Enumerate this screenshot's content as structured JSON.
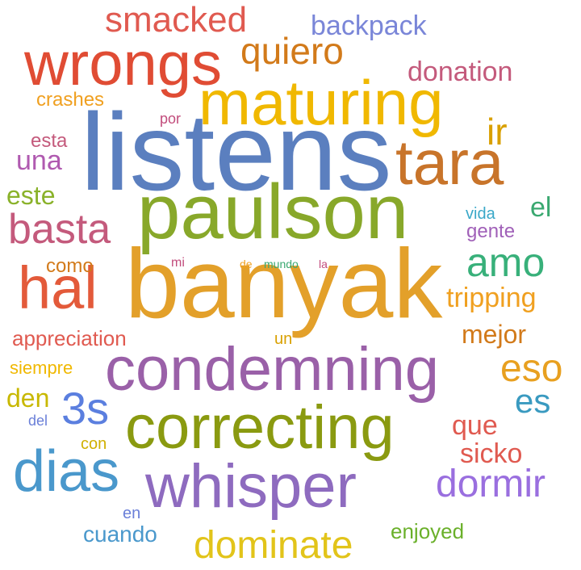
{
  "colors": {
    "red": "#e0503c",
    "salmon": "#e05a4e",
    "gold": "#e8a020",
    "amber": "#f0b800",
    "yellow": "#e2c41a",
    "blue": "#5b7fbf",
    "steel": "#4a90c0",
    "olive": "#8aa02a",
    "green": "#7cb342",
    "purple": "#8e5fa8",
    "violet": "#9a6fcf",
    "rose": "#c05a7a",
    "orange": "#d2691e",
    "teal": "#3aa89a",
    "periwinkle": "#6a7fd8"
  },
  "words": [
    {
      "text": "listens",
      "color": "#5b7fbf"
    },
    {
      "text": "banyak",
      "color": "#e3a02a"
    },
    {
      "text": "paulson",
      "color": "#88a82a"
    },
    {
      "text": "maturing",
      "color": "#f0b800"
    },
    {
      "text": "wrongs",
      "color": "#e04c34"
    },
    {
      "text": "tara",
      "color": "#c8742a"
    },
    {
      "text": "condemning",
      "color": "#9a60a8"
    },
    {
      "text": "correcting",
      "color": "#8a9a10"
    },
    {
      "text": "whisper",
      "color": "#8e6bbf"
    },
    {
      "text": "hal",
      "color": "#e35a3a"
    },
    {
      "text": "dias",
      "color": "#4a98cc"
    },
    {
      "text": "basta",
      "color": "#c45a7c"
    },
    {
      "text": "amo",
      "color": "#38b07a"
    },
    {
      "text": "smacked",
      "color": "#e05a50"
    },
    {
      "text": "quiero",
      "color": "#d27a1a"
    },
    {
      "text": "backpack",
      "color": "#7a86d8"
    },
    {
      "text": "donation",
      "color": "#c45a7c"
    },
    {
      "text": "crashes",
      "color": "#f0a020"
    },
    {
      "text": "por",
      "color": "#c24c7c"
    },
    {
      "text": "ir",
      "color": "#d9a000"
    },
    {
      "text": "esta",
      "color": "#c45a7c"
    },
    {
      "text": "una",
      "color": "#b05ab0"
    },
    {
      "text": "este",
      "color": "#8ab22a"
    },
    {
      "text": "el",
      "color": "#3aa870"
    },
    {
      "text": "vida",
      "color": "#3aa8c8"
    },
    {
      "text": "gente",
      "color": "#a060b8"
    },
    {
      "text": "como",
      "color": "#d27a1a"
    },
    {
      "text": "mi",
      "color": "#c24c7c"
    },
    {
      "text": "de",
      "color": "#f0a020"
    },
    {
      "text": "mundo",
      "color": "#3aa870"
    },
    {
      "text": "la",
      "color": "#c24c7c"
    },
    {
      "text": "tripping",
      "color": "#f0a020"
    },
    {
      "text": "mejor",
      "color": "#d27a1a"
    },
    {
      "text": "appreciation",
      "color": "#e05a50"
    },
    {
      "text": "un",
      "color": "#d9a000"
    },
    {
      "text": "siempre",
      "color": "#f0b800"
    },
    {
      "text": "eso",
      "color": "#e8a020"
    },
    {
      "text": "es",
      "color": "#3a9ac0"
    },
    {
      "text": "den",
      "color": "#c8b800"
    },
    {
      "text": "3s",
      "color": "#5b7fdf"
    },
    {
      "text": "del",
      "color": "#6a7fd8"
    },
    {
      "text": "que",
      "color": "#e05a50"
    },
    {
      "text": "con",
      "color": "#d0b000"
    },
    {
      "text": "sicko",
      "color": "#e05a50"
    },
    {
      "text": "dormir",
      "color": "#9a6fdf"
    },
    {
      "text": "en",
      "color": "#6a7fd8"
    },
    {
      "text": "cuando",
      "color": "#4a98cc"
    },
    {
      "text": "dominate",
      "color": "#e2c41a"
    },
    {
      "text": "enjoyed",
      "color": "#6ab02a"
    }
  ]
}
